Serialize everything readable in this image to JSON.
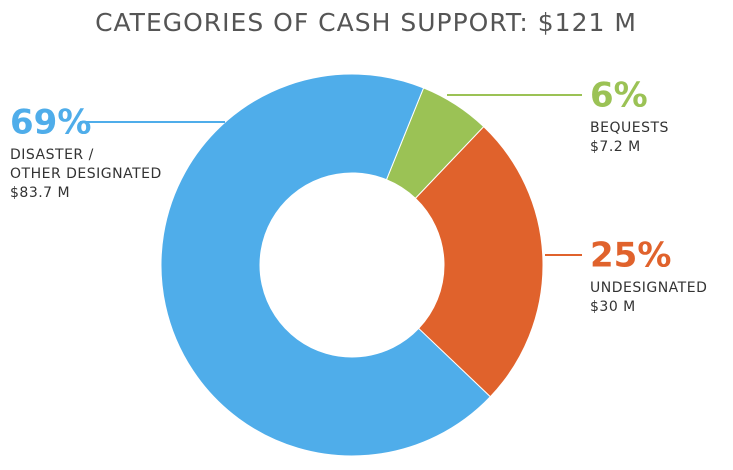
{
  "chart_data": {
    "type": "donut",
    "title": "CATEGORIES OF CASH SUPPORT:  $121 M",
    "categories": [
      [
        "BEQUESTS"
      ],
      [
        "UNDESIGNATED"
      ],
      [
        "DISASTER /",
        "OTHER DESIGNATED"
      ]
    ],
    "values": [
      6,
      25,
      69
    ],
    "value_labels": [
      "6%",
      "25%",
      "69%"
    ],
    "amounts": [
      7.2,
      30,
      83.7
    ],
    "amount_labels": [
      "$7.2 M",
      "$30 M",
      "$83.7 M"
    ],
    "colors": [
      "#9bc255",
      "#e0622c",
      "#4fadea"
    ]
  }
}
